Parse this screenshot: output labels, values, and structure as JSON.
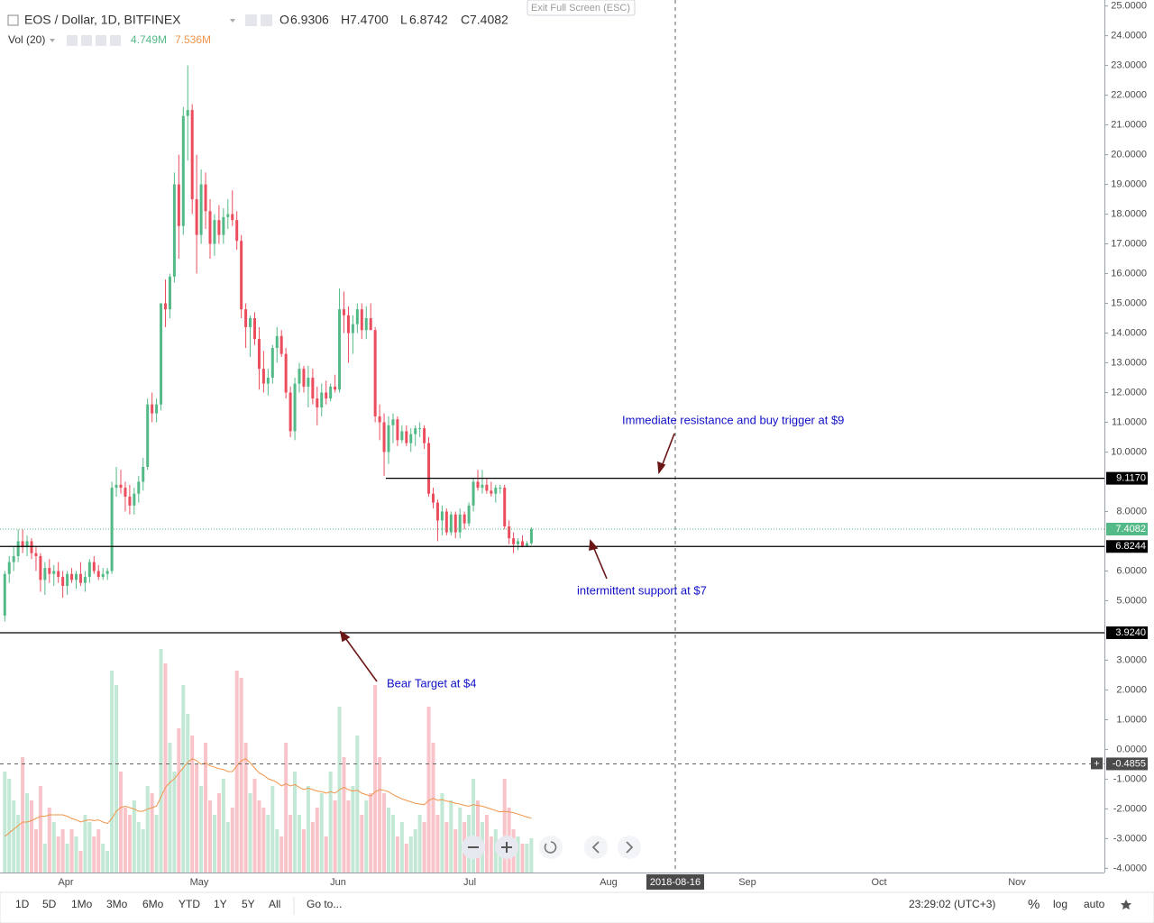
{
  "ui": {
    "exit_fullscreen": "Exit Full Screen (ESC)",
    "ranges": [
      "1D",
      "5D",
      "1Mo",
      "3Mo",
      "6Mo",
      "YTD",
      "1Y",
      "5Y",
      "All"
    ],
    "goto": "Go to...",
    "clock": "23:29:02 (UTC+3)",
    "scale_buttons": [
      "%",
      "log",
      "auto"
    ]
  },
  "chart_data": {
    "type": "candlestick",
    "title": "EOS / Dollar, 1D, BITFINEX",
    "ohlc_legend": [
      {
        "label": "O",
        "value": "6.9306"
      },
      {
        "label": "H",
        "value": "7.4700"
      },
      {
        "label": "L",
        "value": "6.8742"
      },
      {
        "label": "C",
        "value": "7.4082"
      }
    ],
    "volume_legend": {
      "title": "Vol (20)",
      "values": [
        4.749,
        7.536
      ],
      "value_labels": [
        "4.749M",
        "7.536M"
      ]
    },
    "colors": {
      "up": "#53b987",
      "down": "#eb4d5c",
      "volume_up": "#c3e8d5",
      "volume_down": "#f8c4c9",
      "volume_ma": "#f0954a"
    },
    "ylim": [
      -4.2,
      25.2
    ],
    "yticks": [
      {
        "value": 25,
        "label": "25.0000"
      },
      {
        "value": 24,
        "label": "24.0000"
      },
      {
        "value": 23,
        "label": "23.0000"
      },
      {
        "value": 22,
        "label": "22.0000"
      },
      {
        "value": 21,
        "label": "21.0000"
      },
      {
        "value": 20,
        "label": "20.0000"
      },
      {
        "value": 19,
        "label": "19.0000"
      },
      {
        "value": 18,
        "label": "18.0000"
      },
      {
        "value": 17,
        "label": "17.0000"
      },
      {
        "value": 16,
        "label": "16.0000"
      },
      {
        "value": 15,
        "label": "15.0000"
      },
      {
        "value": 14,
        "label": "14.0000"
      },
      {
        "value": 13,
        "label": "13.0000"
      },
      {
        "value": 12,
        "label": "12.0000"
      },
      {
        "value": 11,
        "label": "11.0000"
      },
      {
        "value": 10,
        "label": "10.0000"
      },
      {
        "value": 8,
        "label": "8.0000"
      },
      {
        "value": 6,
        "label": "6.0000"
      },
      {
        "value": 5,
        "label": "5.0000"
      },
      {
        "value": 3,
        "label": "3.0000"
      },
      {
        "value": 2,
        "label": "2.0000"
      },
      {
        "value": 1,
        "label": "1.0000"
      },
      {
        "value": 0,
        "label": "0.0000"
      },
      {
        "value": -1,
        "label": "-1.0000"
      },
      {
        "value": -2,
        "label": "-2.0000"
      },
      {
        "value": -3,
        "label": "-3.0000"
      },
      {
        "value": -4,
        "label": "-4.0000"
      }
    ],
    "xaxis_labels": [
      "Apr",
      "May",
      "Jun",
      "Jul",
      "Aug",
      "Sep",
      "Oct",
      "Nov"
    ],
    "candles": [
      [
        4.5,
        6.0,
        4.3,
        5.9
      ],
      [
        5.9,
        6.5,
        5.6,
        6.3
      ],
      [
        6.3,
        6.8,
        6.0,
        6.5
      ],
      [
        6.5,
        7.4,
        6.3,
        7.0
      ],
      [
        7.0,
        7.4,
        6.6,
        6.8
      ],
      [
        6.8,
        7.2,
        6.5,
        7.0
      ],
      [
        7.0,
        7.1,
        6.4,
        6.6
      ],
      [
        6.6,
        6.8,
        6.0,
        6.5
      ],
      [
        6.5,
        6.6,
        5.3,
        5.7
      ],
      [
        5.7,
        6.3,
        5.2,
        6.1
      ],
      [
        6.1,
        6.4,
        5.6,
        5.9
      ],
      [
        5.9,
        6.2,
        5.5,
        6.0
      ],
      [
        6.0,
        6.3,
        5.6,
        5.8
      ],
      [
        5.8,
        6.0,
        5.1,
        5.5
      ],
      [
        5.5,
        6.0,
        5.2,
        5.9
      ],
      [
        5.9,
        6.1,
        5.6,
        5.7
      ],
      [
        5.7,
        6.0,
        5.4,
        5.9
      ],
      [
        5.9,
        6.3,
        5.5,
        5.6
      ],
      [
        5.6,
        6.0,
        5.3,
        5.8
      ],
      [
        5.8,
        6.4,
        5.6,
        6.3
      ],
      [
        6.3,
        6.5,
        5.9,
        6.0
      ],
      [
        6.0,
        6.2,
        5.7,
        5.8
      ],
      [
        5.8,
        6.1,
        5.7,
        5.9
      ],
      [
        5.9,
        6.1,
        5.7,
        6.0
      ],
      [
        6.0,
        9.0,
        5.9,
        8.8
      ],
      [
        8.8,
        9.5,
        8.5,
        8.9
      ],
      [
        8.9,
        9.4,
        8.6,
        8.8
      ],
      [
        8.8,
        9.0,
        8.0,
        8.5
      ],
      [
        8.5,
        8.9,
        7.9,
        8.2
      ],
      [
        8.2,
        8.8,
        7.9,
        8.6
      ],
      [
        8.6,
        9.2,
        8.3,
        9.0
      ],
      [
        9.0,
        9.8,
        8.7,
        9.5
      ],
      [
        9.5,
        11.8,
        9.4,
        11.6
      ],
      [
        11.6,
        12.0,
        11.0,
        11.3
      ],
      [
        11.3,
        11.8,
        11.0,
        11.6
      ],
      [
        11.6,
        15.0,
        11.4,
        15.0
      ],
      [
        15.0,
        15.8,
        14.2,
        14.8
      ],
      [
        14.8,
        16.0,
        14.5,
        15.9
      ],
      [
        15.9,
        19.4,
        15.7,
        19.0
      ],
      [
        19.0,
        20.0,
        16.5,
        17.6
      ],
      [
        17.6,
        21.6,
        17.3,
        21.3
      ],
      [
        21.3,
        23.0,
        19.8,
        21.5
      ],
      [
        21.5,
        21.7,
        18.0,
        18.5
      ],
      [
        18.5,
        20.0,
        16.0,
        17.3
      ],
      [
        17.3,
        19.5,
        17.0,
        19.0
      ],
      [
        19.0,
        19.4,
        17.5,
        18.1
      ],
      [
        18.1,
        18.5,
        16.5,
        17.0
      ],
      [
        17.0,
        18.0,
        16.6,
        17.8
      ],
      [
        17.8,
        18.3,
        17.0,
        17.3
      ],
      [
        17.3,
        18.2,
        17.0,
        17.9
      ],
      [
        17.9,
        18.5,
        17.5,
        18.0
      ],
      [
        18.0,
        18.8,
        17.6,
        17.8
      ],
      [
        17.8,
        18.1,
        16.8,
        17.1
      ],
      [
        17.1,
        17.3,
        14.5,
        14.8
      ],
      [
        14.8,
        15.0,
        13.5,
        14.2
      ],
      [
        14.2,
        14.6,
        13.2,
        14.5
      ],
      [
        14.5,
        14.7,
        13.6,
        13.8
      ],
      [
        13.8,
        14.2,
        12.1,
        12.8
      ],
      [
        12.8,
        13.4,
        12.0,
        12.3
      ],
      [
        12.3,
        12.8,
        11.9,
        12.5
      ],
      [
        12.5,
        13.6,
        12.3,
        13.5
      ],
      [
        13.5,
        14.2,
        13.0,
        13.9
      ],
      [
        13.9,
        14.1,
        13.2,
        13.3
      ],
      [
        13.3,
        13.5,
        11.8,
        12.0
      ],
      [
        12.0,
        12.2,
        10.5,
        10.7
      ],
      [
        10.7,
        12.5,
        10.4,
        12.3
      ],
      [
        12.3,
        13.0,
        12.0,
        12.8
      ],
      [
        12.8,
        12.9,
        12.0,
        12.2
      ],
      [
        12.2,
        12.9,
        11.5,
        12.5
      ],
      [
        12.5,
        12.8,
        11.6,
        11.8
      ],
      [
        11.8,
        12.2,
        10.9,
        11.5
      ],
      [
        11.5,
        12.3,
        11.2,
        12.0
      ],
      [
        12.0,
        12.4,
        11.6,
        11.8
      ],
      [
        11.8,
        12.3,
        11.7,
        12.2
      ],
      [
        12.2,
        12.6,
        12.0,
        12.1
      ],
      [
        12.1,
        15.5,
        12.0,
        14.8
      ],
      [
        14.8,
        15.4,
        14.0,
        14.6
      ],
      [
        14.6,
        14.9,
        13.0,
        14.0
      ],
      [
        14.0,
        14.6,
        13.3,
        14.3
      ],
      [
        14.3,
        15.0,
        14.0,
        14.8
      ],
      [
        14.8,
        15.0,
        13.8,
        14.1
      ],
      [
        14.1,
        14.9,
        13.8,
        14.5
      ],
      [
        14.5,
        15.0,
        14.1,
        14.1
      ],
      [
        14.1,
        14.2,
        11.0,
        11.2
      ],
      [
        11.2,
        11.6,
        10.4,
        11.0
      ],
      [
        11.0,
        11.3,
        9.2,
        10.0
      ],
      [
        10.0,
        11.2,
        9.6,
        10.9
      ],
      [
        10.9,
        11.3,
        10.3,
        11.1
      ],
      [
        11.1,
        11.2,
        10.2,
        10.4
      ],
      [
        10.4,
        10.9,
        10.3,
        10.7
      ],
      [
        10.7,
        10.9,
        10.2,
        10.3
      ],
      [
        10.3,
        10.8,
        10.0,
        10.6
      ],
      [
        10.6,
        10.9,
        10.2,
        10.8
      ],
      [
        10.8,
        11.0,
        10.5,
        10.8
      ],
      [
        10.8,
        10.9,
        10.1,
        10.3
      ],
      [
        10.3,
        10.5,
        8.5,
        8.6
      ],
      [
        8.6,
        8.8,
        8.1,
        8.3
      ],
      [
        8.3,
        8.4,
        7.0,
        7.7
      ],
      [
        7.7,
        8.2,
        7.2,
        8.0
      ],
      [
        8.0,
        8.1,
        7.2,
        7.3
      ],
      [
        7.3,
        8.0,
        7.2,
        7.9
      ],
      [
        7.9,
        8.0,
        7.1,
        7.3
      ],
      [
        7.3,
        8.1,
        7.1,
        7.9
      ],
      [
        7.9,
        8.0,
        7.4,
        7.6
      ],
      [
        7.6,
        8.3,
        7.5,
        8.2
      ],
      [
        8.2,
        9.1,
        8.0,
        9.0
      ],
      [
        9.0,
        9.4,
        8.7,
        8.8
      ],
      [
        8.8,
        9.4,
        8.6,
        8.9
      ],
      [
        8.9,
        9.1,
        8.6,
        8.7
      ],
      [
        8.7,
        9.0,
        8.5,
        8.6
      ],
      [
        8.6,
        8.9,
        8.3,
        8.8
      ],
      [
        8.8,
        8.9,
        8.6,
        8.8
      ],
      [
        8.8,
        8.9,
        7.4,
        7.5
      ],
      [
        7.5,
        7.7,
        6.9,
        7.1
      ],
      [
        7.1,
        7.3,
        6.6,
        6.9
      ],
      [
        6.9,
        7.1,
        6.7,
        7.0
      ],
      [
        7.0,
        7.2,
        6.8,
        6.85
      ],
      [
        6.85,
        7.0,
        6.8,
        6.93
      ],
      [
        6.9306,
        7.47,
        6.8742,
        7.4082
      ]
    ],
    "volume": [
      14,
      13,
      10,
      8,
      16,
      11,
      10,
      6,
      12,
      4,
      9,
      7,
      5,
      6,
      4,
      6,
      5,
      3,
      8,
      7,
      5,
      6,
      4,
      3,
      28,
      26,
      14,
      9,
      8,
      10,
      7,
      6,
      12,
      11,
      8,
      31,
      29,
      18,
      14,
      20,
      26,
      22,
      19,
      15,
      12,
      18,
      10,
      8,
      11,
      13,
      7,
      9,
      28,
      27,
      18,
      11,
      13,
      10,
      9,
      8,
      12,
      6,
      5,
      18,
      8,
      14,
      8,
      6,
      12,
      7,
      9,
      11,
      5,
      14,
      10,
      23,
      16,
      10,
      12,
      19,
      8,
      10,
      11,
      26,
      16,
      11,
      9,
      8,
      5,
      7,
      4,
      5,
      6,
      8,
      7,
      23,
      18,
      8,
      11,
      7,
      10,
      6,
      9,
      7,
      8,
      13,
      10,
      7,
      8,
      5,
      6,
      4,
      13,
      9,
      6,
      5,
      4,
      4,
      4.749
    ],
    "volume_ma": [
      5,
      5.5,
      6,
      6.5,
      7,
      7,
      7.2,
      7.5,
      7.8,
      7.8,
      8,
      8,
      8,
      8,
      7.8,
      7.5,
      7.3,
      7.0,
      7.2,
      7.3,
      7.2,
      7.3,
      7.0,
      6.8,
      7.5,
      8.5,
      9.0,
      9.2,
      9.0,
      8.8,
      8.5,
      8.5,
      8.8,
      9.0,
      9.2,
      10.5,
      11.8,
      12.5,
      13.0,
      13.8,
      14.5,
      15.3,
      15.8,
      15.5,
      15.0,
      15.2,
      14.8,
      14.6,
      14.4,
      14.3,
      14.0,
      14.0,
      14.8,
      15.5,
      15.8,
      15.2,
      14.5,
      13.8,
      13.5,
      13.0,
      12.8,
      12.5,
      12.0,
      12.3,
      12.0,
      12.2,
      11.8,
      11.5,
      11.7,
      11.5,
      11.3,
      11.2,
      11.0,
      11.2,
      11.0,
      11.5,
      11.8,
      11.5,
      11.3,
      11.4,
      11.0,
      10.8,
      10.6,
      11.2,
      11.5,
      11.4,
      11.2,
      10.8,
      10.5,
      10.2,
      10.0,
      9.8,
      9.6,
      9.5,
      9.4,
      10.0,
      10.3,
      10.0,
      10.1,
      9.9,
      9.8,
      9.6,
      9.5,
      9.3,
      9.2,
      9.4,
      9.3,
      9.2,
      9.0,
      8.8,
      8.6,
      8.4,
      8.5,
      8.4,
      8.3,
      8.1,
      7.9,
      7.7,
      7.536
    ],
    "levels": [
      {
        "value": 9.117,
        "label": "9.1170"
      },
      {
        "value": 6.8244,
        "label": "6.8244"
      },
      {
        "value": 3.924,
        "label": "3.9240"
      }
    ],
    "last_price": {
      "value": 7.4082,
      "label": "7.4082"
    },
    "crosshair": {
      "price": {
        "value": -0.4855,
        "label": "-0.4855"
      },
      "date": "2018-08-16"
    },
    "annotations": [
      "Immediate resistance and buy trigger at $9",
      "intermittent support at $7",
      "Bear Target at $4"
    ]
  }
}
